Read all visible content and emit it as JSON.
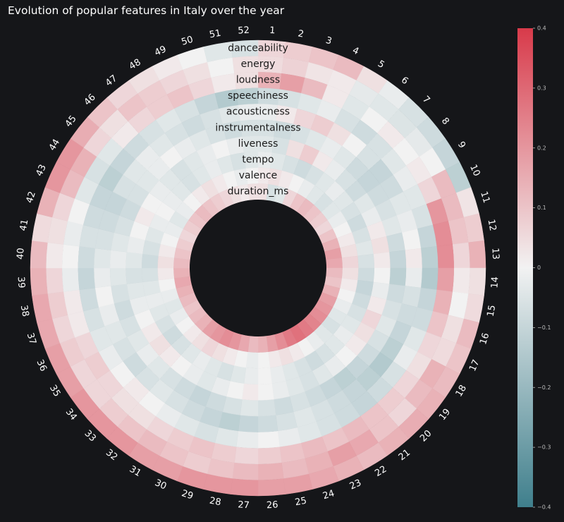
{
  "title": "Evolution of popular features in Italy over the year",
  "chart_data": {
    "type": "heatmap",
    "title": "Evolution of popular features in Italy over the year",
    "layout": "radial",
    "rings": [
      "danceability",
      "energy",
      "loudness",
      "speechiness",
      "acousticness",
      "instrumentalness",
      "liveness",
      "tempo",
      "valence",
      "duration_ms"
    ],
    "weeks": [
      "1",
      "2",
      "3",
      "4",
      "5",
      "6",
      "7",
      "8",
      "9",
      "10",
      "11",
      "12",
      "13",
      "14",
      "15",
      "16",
      "17",
      "18",
      "19",
      "20",
      "21",
      "22",
      "23",
      "24",
      "25",
      "26",
      "27",
      "28",
      "29",
      "30",
      "31",
      "32",
      "33",
      "34",
      "35",
      "36",
      "37",
      "38",
      "39",
      "40",
      "41",
      "42",
      "43",
      "44",
      "45",
      "46",
      "47",
      "48",
      "49",
      "50",
      "51",
      "52"
    ],
    "colorbar": {
      "min": -0.4,
      "max": 0.4,
      "ticks": [
        "0.4",
        "0.3",
        "0.2",
        "0.1",
        "0",
        "−0.1",
        "−0.2",
        "−0.3",
        "−0.4"
      ],
      "low_color": "#3f7f8c",
      "mid_color": "#f2f2f2",
      "high_color": "#d83a4a"
    },
    "values": [
      [
        0.06,
        0.08,
        0.1,
        0.12,
        0.04,
        -0.02,
        -0.06,
        -0.08,
        -0.1,
        -0.12,
        0.03,
        0.08,
        0.14,
        0.04,
        0.05,
        0.12,
        0.1,
        0.12,
        0.14,
        0.15,
        0.14,
        0.12,
        0.14,
        0.16,
        0.18,
        0.18,
        0.2,
        0.2,
        0.2,
        0.18,
        0.18,
        0.2,
        0.2,
        0.2,
        0.18,
        0.18,
        0.16,
        0.16,
        0.14,
        0.12,
        0.05,
        0.14,
        0.2,
        0.2,
        0.15,
        0.1,
        0.06,
        0.04,
        0.02,
        0.0,
        -0.04,
        -0.06
      ],
      [
        0.05,
        0.07,
        0.03,
        0.02,
        -0.03,
        -0.04,
        -0.05,
        -0.03,
        0.0,
        0.12,
        0.12,
        0.1,
        0.06,
        0.02,
        0.0,
        0.04,
        0.05,
        0.14,
        0.12,
        0.06,
        0.1,
        0.16,
        0.18,
        0.14,
        0.12,
        0.14,
        0.12,
        0.1,
        0.08,
        0.1,
        0.12,
        0.1,
        0.08,
        0.06,
        0.06,
        0.08,
        0.06,
        0.08,
        0.06,
        0.02,
        0.04,
        0.06,
        0.12,
        0.14,
        0.06,
        0.04,
        0.1,
        0.08,
        0.06,
        0.04,
        0.0,
        0.04
      ],
      [
        0.14,
        0.18,
        0.12,
        0.02,
        -0.04,
        0.0,
        0.02,
        0.0,
        0.02,
        0.06,
        0.2,
        0.22,
        0.22,
        0.18,
        0.14,
        0.1,
        0.06,
        0.04,
        0.06,
        0.08,
        0.1,
        0.12,
        0.1,
        0.12,
        0.1,
        0.08,
        0.06,
        0.08,
        0.1,
        0.08,
        0.06,
        0.04,
        0.04,
        0.06,
        0.08,
        0.06,
        0.02,
        0.02,
        -0.02,
        0.0,
        -0.02,
        0.0,
        -0.04,
        -0.06,
        -0.04,
        0.02,
        0.06,
        0.08,
        0.1,
        0.06,
        0.02,
        0.04
      ],
      [
        -0.08,
        -0.06,
        -0.04,
        -0.02,
        -0.06,
        -0.08,
        -0.06,
        -0.04,
        -0.02,
        -0.04,
        -0.06,
        -0.1,
        -0.12,
        -0.14,
        -0.1,
        -0.08,
        -0.04,
        -0.02,
        -0.06,
        -0.08,
        -0.1,
        -0.08,
        -0.06,
        -0.04,
        -0.02,
        0.0,
        -0.02,
        -0.04,
        -0.06,
        -0.04,
        -0.02,
        0.0,
        0.02,
        0.0,
        -0.02,
        -0.04,
        -0.06,
        -0.08,
        -0.1,
        -0.08,
        -0.06,
        -0.08,
        -0.1,
        -0.12,
        -0.1,
        -0.08,
        -0.06,
        -0.04,
        -0.06,
        -0.1,
        -0.14,
        -0.12
      ],
      [
        -0.02,
        0.02,
        0.06,
        0.08,
        0.04,
        0.0,
        -0.06,
        -0.1,
        -0.08,
        -0.04,
        -0.02,
        0.0,
        0.02,
        -0.02,
        -0.06,
        -0.08,
        -0.1,
        -0.12,
        -0.14,
        -0.12,
        -0.1,
        -0.08,
        -0.06,
        -0.04,
        -0.06,
        -0.08,
        -0.1,
        -0.12,
        -0.1,
        -0.08,
        -0.06,
        -0.04,
        -0.06,
        -0.08,
        -0.06,
        -0.04,
        -0.02,
        0.0,
        -0.02,
        -0.04,
        -0.06,
        -0.08,
        -0.1,
        -0.06,
        -0.04,
        -0.02,
        -0.04,
        -0.06,
        -0.08,
        -0.06,
        -0.04,
        -0.02
      ],
      [
        -0.06,
        -0.08,
        -0.06,
        -0.04,
        -0.02,
        -0.04,
        -0.08,
        -0.1,
        -0.08,
        -0.06,
        -0.04,
        -0.08,
        -0.1,
        -0.12,
        -0.08,
        -0.06,
        -0.04,
        -0.06,
        -0.08,
        -0.1,
        -0.12,
        -0.1,
        -0.08,
        -0.06,
        -0.08,
        -0.06,
        -0.04,
        -0.06,
        -0.08,
        -0.1,
        -0.08,
        -0.06,
        -0.04,
        -0.02,
        -0.04,
        -0.06,
        -0.08,
        -0.06,
        -0.04,
        -0.02,
        -0.04,
        -0.06,
        -0.08,
        -0.06,
        -0.04,
        -0.02,
        0.0,
        -0.02,
        -0.04,
        -0.06,
        -0.08,
        -0.06
      ],
      [
        -0.04,
        -0.06,
        0.04,
        0.08,
        0.02,
        -0.02,
        -0.06,
        -0.08,
        -0.04,
        -0.02,
        0.02,
        0.04,
        0.02,
        0.0,
        -0.02,
        0.02,
        0.06,
        0.04,
        0.02,
        0.0,
        -0.02,
        -0.04,
        -0.06,
        -0.04,
        -0.02,
        0.0,
        0.02,
        0.0,
        -0.02,
        -0.04,
        -0.02,
        0.0,
        0.02,
        0.04,
        0.02,
        0.0,
        -0.02,
        -0.04,
        -0.06,
        -0.04,
        -0.02,
        0.0,
        0.02,
        0.0,
        -0.02,
        -0.04,
        -0.06,
        -0.04,
        -0.02,
        0.0,
        -0.02,
        -0.04
      ],
      [
        -0.02,
        -0.04,
        -0.06,
        -0.08,
        -0.06,
        -0.04,
        -0.02,
        -0.04,
        -0.06,
        -0.08,
        -0.06,
        -0.04,
        -0.06,
        -0.08,
        -0.1,
        -0.08,
        -0.06,
        -0.04,
        -0.02,
        -0.04,
        -0.06,
        -0.08,
        -0.06,
        -0.04,
        -0.02,
        0.0,
        -0.02,
        -0.04,
        -0.06,
        -0.04,
        -0.02,
        -0.04,
        -0.06,
        -0.08,
        -0.06,
        -0.04,
        -0.02,
        -0.04,
        -0.06,
        -0.08,
        -0.06,
        -0.04,
        -0.02,
        0.0,
        -0.02,
        -0.04,
        -0.06,
        -0.04,
        -0.02,
        -0.04,
        -0.06,
        -0.04
      ],
      [
        0.02,
        0.04,
        0.02,
        0.0,
        -0.02,
        -0.04,
        -0.06,
        -0.04,
        -0.02,
        0.0,
        0.02,
        0.04,
        0.06,
        0.04,
        0.02,
        0.0,
        -0.02,
        -0.04,
        -0.06,
        -0.04,
        -0.02,
        0.0,
        0.02,
        0.04,
        0.02,
        0.0,
        -0.02,
        0.0,
        0.02,
        0.04,
        0.06,
        0.04,
        0.02,
        0.0,
        -0.02,
        -0.04,
        -0.02,
        0.0,
        0.02,
        0.04,
        0.02,
        0.0,
        -0.02,
        -0.04,
        -0.02,
        0.0,
        0.02,
        0.04,
        0.02,
        0.0,
        -0.02,
        0.0
      ],
      [
        0.04,
        -0.06,
        -0.04,
        0.06,
        0.1,
        0.12,
        0.1,
        0.08,
        0.06,
        0.1,
        0.14,
        0.18,
        0.16,
        0.12,
        0.1,
        0.14,
        0.18,
        0.2,
        0.22,
        0.24,
        0.26,
        0.28,
        0.26,
        0.22,
        0.18,
        0.14,
        0.12,
        0.16,
        0.2,
        0.22,
        0.2,
        0.18,
        0.14,
        0.12,
        0.1,
        0.12,
        0.14,
        0.16,
        0.14,
        0.12,
        0.1,
        0.08,
        0.06,
        0.08,
        0.1,
        0.12,
        0.1,
        0.08,
        0.06,
        0.04,
        0.02,
        0.04
      ]
    ]
  }
}
